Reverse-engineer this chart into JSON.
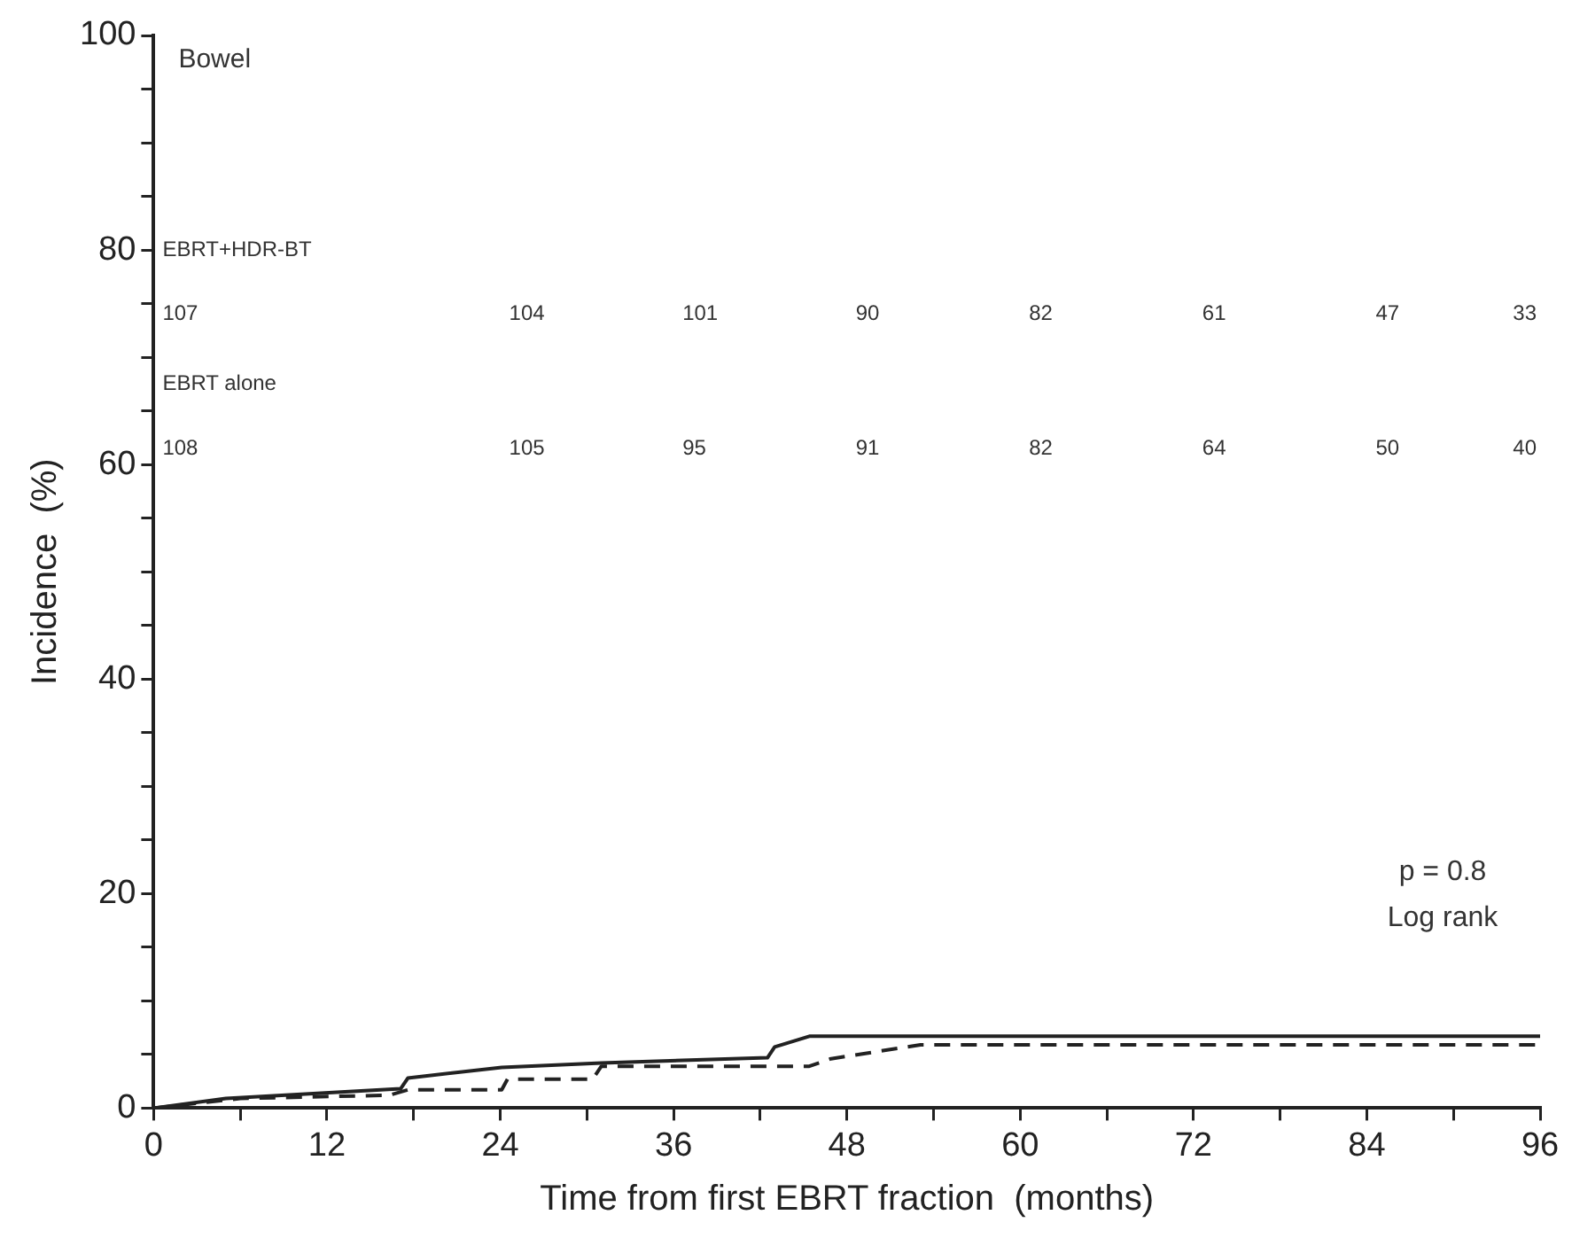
{
  "chart_data": {
    "type": "line",
    "title": "Bowel",
    "xlabel": "Time from first EBRT fraction  (months)",
    "ylabel": "Incidence  (%)",
    "xlim": [
      0,
      96
    ],
    "xticks": [
      0,
      {
        "value": 6,
        "label": null
      },
      12,
      {
        "value": 18,
        "label": null
      },
      24,
      {
        "value": 30,
        "label": null
      },
      36,
      {
        "value": 42,
        "label": null
      },
      48,
      {
        "value": 54,
        "label": null
      },
      60,
      {
        "value": 66,
        "label": null
      },
      72,
      {
        "value": 78,
        "label": null
      },
      84,
      {
        "value": 90,
        "label": null
      },
      96
    ],
    "ylim": [
      0,
      100
    ],
    "yticks": [
      0,
      {
        "value": 5,
        "label": null
      },
      {
        "value": 10,
        "label": null
      },
      {
        "value": 15,
        "label": null
      },
      20,
      {
        "value": 25,
        "label": null
      },
      {
        "value": 30,
        "label": null
      },
      {
        "value": 35,
        "label": null
      },
      40,
      {
        "value": 45,
        "label": null
      },
      {
        "value": 50,
        "label": null
      },
      {
        "value": 55,
        "label": null
      },
      60,
      {
        "value": 65,
        "label": null
      },
      {
        "value": 70,
        "label": null
      },
      {
        "value": 75,
        "label": null
      },
      80,
      {
        "value": 85,
        "label": null
      },
      {
        "value": 90,
        "label": null
      },
      {
        "value": 95,
        "label": null
      },
      100
    ],
    "grid": false,
    "legend": false,
    "marker": "none",
    "series": [
      {
        "color": "#222222",
        "line_style": "solid",
        "x": [
          0,
          5,
          17.1,
          17.6,
          24.1,
          31,
          42.5,
          43,
          45.4,
          96
        ],
        "values": [
          0,
          0.9,
          1.8,
          2.8,
          3.8,
          4.2,
          4.7,
          5.7,
          6.7,
          6.7
        ]
      },
      {
        "color": "#222222",
        "line_style": "dashed",
        "x": [
          0,
          6,
          16.3,
          17.6,
          24.1,
          24.5,
          30.4,
          31,
          45.4,
          46.9,
          53.1,
          96
        ],
        "values": [
          0,
          0.9,
          1.2,
          1.7,
          1.7,
          2.7,
          2.7,
          3.9,
          3.9,
          4.6,
          5.9,
          5.9
        ]
      }
    ],
    "annotations": [
      "EBRT+HDR-BT",
      "107",
      "104",
      "101",
      "90",
      "82",
      "61",
      "47",
      "33",
      "EBRT alone",
      "108",
      "105",
      "95",
      "91",
      "82",
      "64",
      "50",
      "40",
      "p = 0.8",
      "Log rank"
    ]
  }
}
